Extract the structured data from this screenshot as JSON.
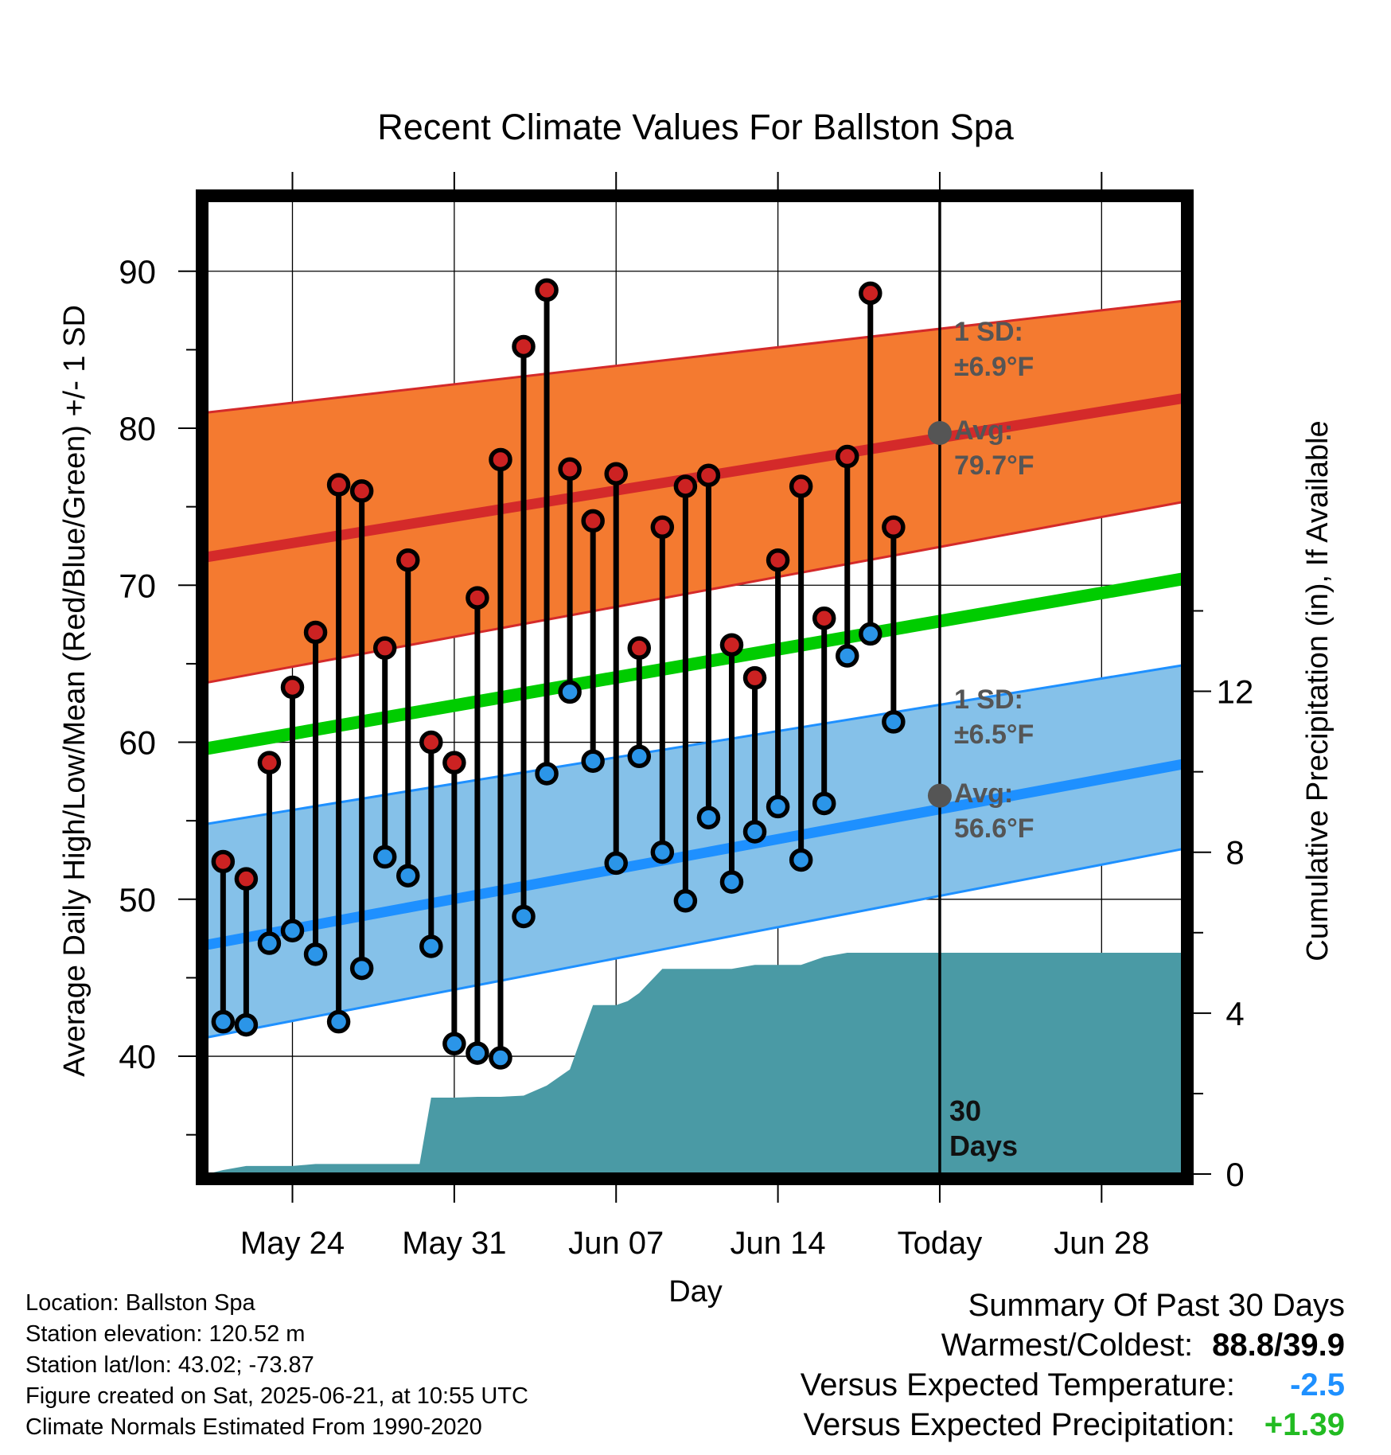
{
  "chart_data": {
    "type": "line",
    "title": "Recent Climate Values For Ballston Spa",
    "xlabel": "Day",
    "ylabel": "Average Daily High/Low/Mean (Red/Blue/Green) +/- 1 SD",
    "y2label": "Cumulative Precipitation (in), If Available",
    "ylim": [
      32.5,
      94.5
    ],
    "y2lim": [
      0,
      24.2
    ],
    "yticks": [
      "40",
      "50",
      "60",
      "70",
      "80",
      "90"
    ],
    "y2ticks": [
      "0",
      "4",
      "8",
      "12"
    ],
    "xlim": [
      -0.7,
      41.5
    ],
    "xticks": [
      {
        "x": 3,
        "label": "May 24"
      },
      {
        "x": 10,
        "label": "May 31"
      },
      {
        "x": 17,
        "label": "Jun 07"
      },
      {
        "x": 24,
        "label": "Jun 14"
      },
      {
        "x": 31,
        "label": "Today"
      },
      {
        "x": 38,
        "label": "Jun 28"
      }
    ],
    "grid": true,
    "today_x": 31,
    "daily_x": [
      0,
      1,
      2,
      3,
      4,
      5,
      6,
      7,
      8,
      9,
      10,
      11,
      12,
      13,
      14,
      15,
      16,
      17,
      18,
      19,
      20,
      21,
      22,
      23,
      24,
      25,
      26,
      27,
      28,
      29
    ],
    "series": [
      {
        "values": [
          52.4,
          51.3,
          58.7,
          63.5,
          67.0,
          76.4,
          76.0,
          66.0,
          71.6,
          60.0,
          58.7,
          69.2,
          78.0,
          85.2,
          88.8,
          77.4,
          74.1,
          77.1,
          66.0,
          73.7,
          76.3,
          77.0,
          66.2,
          64.1,
          71.6,
          76.3,
          67.9,
          78.2,
          88.6,
          73.7
        ]
      },
      {
        "values": [
          42.2,
          42.0,
          47.2,
          48.0,
          46.5,
          42.2,
          45.6,
          52.7,
          51.5,
          47.0,
          40.8,
          40.2,
          39.9,
          48.9,
          58.0,
          63.2,
          58.8,
          52.3,
          59.1,
          53.0,
          49.9,
          55.2,
          51.1,
          54.3,
          55.9,
          52.5,
          56.1,
          65.5,
          66.9,
          61.3
        ]
      }
    ],
    "normals_x": [
      -0.7,
      41.5
    ],
    "normal_high": [
      71.8,
      81.9
    ],
    "normal_high_band_upper": [
      81.0,
      88.1
    ],
    "normal_high_band_lower": [
      63.8,
      75.3
    ],
    "normal_mean": [
      59.6,
      70.4
    ],
    "normal_low": [
      47.1,
      58.6
    ],
    "normal_low_band_upper": [
      54.8,
      64.9
    ],
    "normal_low_band_lower": [
      41.2,
      53.2
    ],
    "today_high": "79.7",
    "today_low": "56.6",
    "precip_x": [
      -0.7,
      0,
      1,
      2,
      3,
      4,
      5,
      6,
      7,
      8,
      8.5,
      9,
      10,
      11,
      12,
      13,
      14,
      15,
      16,
      16.5,
      17,
      17.5,
      18,
      19,
      20,
      21,
      22,
      23,
      24,
      25,
      26,
      27,
      28,
      29,
      30,
      31,
      41.5
    ],
    "precip_cum": [
      0.0,
      0.1,
      0.2,
      0.2,
      0.2,
      0.25,
      0.25,
      0.25,
      0.25,
      0.25,
      0.25,
      1.9,
      1.9,
      1.92,
      1.92,
      1.95,
      2.2,
      2.6,
      4.2,
      4.2,
      4.2,
      4.3,
      4.5,
      5.1,
      5.1,
      5.1,
      5.1,
      5.2,
      5.2,
      5.2,
      5.4,
      5.5,
      5.5,
      5.5,
      5.5,
      5.5,
      5.5
    ],
    "annotations": [
      {
        "label": "1 SD:",
        "text": "±6.9°F"
      },
      {
        "label": "Avg:",
        "text": "79.7°F"
      },
      {
        "label": "1 SD:",
        "text": "±6.5°F"
      },
      {
        "label": "Avg:",
        "text": "56.6°F"
      },
      {
        "label": "30",
        "text": "Days"
      }
    ]
  },
  "location": {
    "name": "Location: Ballston Spa",
    "elevation": "Station elevation: 120.52 m",
    "latlon": "Station lat/lon: 43.02; -73.87",
    "created": "Figure created on Sat, 2025-06-21, at 10:55 UTC",
    "normals": "Climate Normals Estimated From 1990-2020"
  },
  "summary": {
    "title": "Summary Of Past 30 Days",
    "warm_cold_label": "Warmest/Coldest:",
    "warm_cold_value": "88.8/39.9",
    "temp_label": "Versus Expected Temperature:",
    "temp_value": "-2.5",
    "temp_color": "#1e90ff",
    "precip_label": "Versus Expected Precipitation:",
    "precip_value": "+1.39",
    "precip_color": "#22bb22"
  },
  "colors": {
    "high_band": "#f47a30",
    "high_line": "#d42a2a",
    "mean_line": "#00cc00",
    "low_band": "#85c1e9",
    "low_line": "#1e90ff",
    "precip": "#4a9aa5",
    "high_dot": "#cc2222",
    "low_dot": "#2b95e8",
    "today_dot": "#555555",
    "annotation_text": "#555555"
  }
}
